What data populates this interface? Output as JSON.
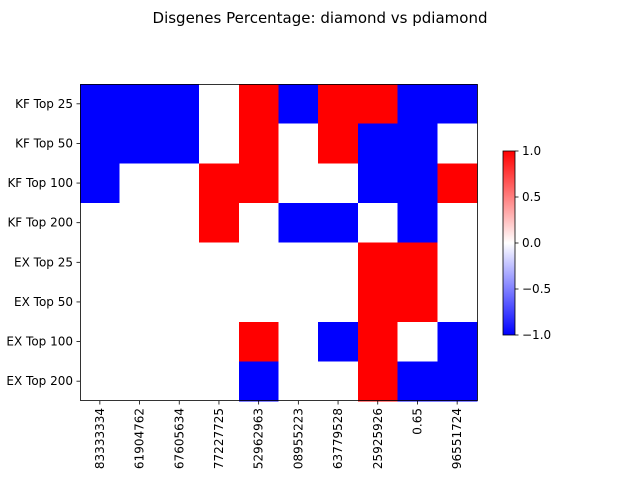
{
  "chart_data": {
    "type": "heatmap",
    "title": "Disgenes Percentage: diamond vs pdiamond",
    "xlabel": "",
    "ylabel": "",
    "rows": [
      "KF Top 25",
      "KF Top 50",
      "KF Top 100",
      "KF Top 200",
      "EX Top 25",
      "EX Top 50",
      "EX Top 100",
      "EX Top 200"
    ],
    "columns": [
      "83333334",
      "61904762",
      "67605634",
      "77227725",
      "52962963",
      "08955223",
      "63779528",
      "25925926",
      "0.65",
      "96551724"
    ],
    "values": [
      [
        -1,
        -1,
        -1,
        0,
        1,
        -1,
        1,
        1,
        -1,
        -1
      ],
      [
        -1,
        -1,
        -1,
        0,
        1,
        0,
        1,
        -1,
        -1,
        0
      ],
      [
        -1,
        0,
        0,
        1,
        1,
        0,
        0,
        -1,
        -1,
        1
      ],
      [
        0,
        0,
        0,
        1,
        0,
        -1,
        -1,
        0,
        -1,
        0
      ],
      [
        0,
        0,
        0,
        0,
        0,
        0,
        0,
        1,
        1,
        0
      ],
      [
        0,
        0,
        0,
        0,
        0,
        0,
        0,
        1,
        1,
        0
      ],
      [
        0,
        0,
        0,
        0,
        1,
        0,
        -1,
        1,
        0,
        -1
      ],
      [
        0,
        0,
        0,
        0,
        -1,
        0,
        0,
        1,
        -1,
        -1
      ]
    ],
    "colormap": "bwr",
    "vmin": -1,
    "vmax": 1,
    "colors": {
      "low": "#0000ff",
      "mid": "#ffffff",
      "high": "#ff0000"
    },
    "colorbar": {
      "ticks": [
        1.0,
        0.5,
        0.0,
        -0.5,
        -1.0
      ],
      "tick_labels": [
        "1.0",
        "0.5",
        "0.0",
        "−0.5",
        "−1.0"
      ],
      "placement": "right"
    },
    "grid": false,
    "legend": "none"
  }
}
